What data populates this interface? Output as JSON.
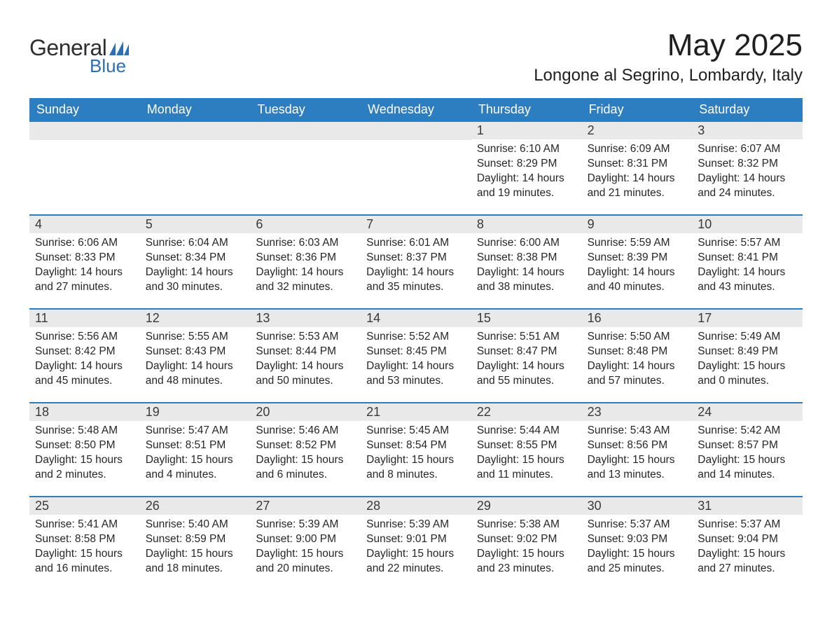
{
  "logo": {
    "general": "General",
    "blue": "Blue"
  },
  "title": "May 2025",
  "location": "Longone al Segrino, Lombardy, Italy",
  "colors": {
    "header_bg": "#2d7dc1",
    "header_text": "#ffffff",
    "daynum_bg": "#e9e9e9",
    "text": "#262626",
    "logo_blue": "#2d6fb5",
    "row_divider": "#2d7dc1",
    "background": "#ffffff"
  },
  "weekdays": [
    "Sunday",
    "Monday",
    "Tuesday",
    "Wednesday",
    "Thursday",
    "Friday",
    "Saturday"
  ],
  "weeks": [
    [
      null,
      null,
      null,
      null,
      {
        "n": "1",
        "sunrise": "Sunrise: 6:10 AM",
        "sunset": "Sunset: 8:29 PM",
        "d1": "Daylight: 14 hours",
        "d2": "and 19 minutes."
      },
      {
        "n": "2",
        "sunrise": "Sunrise: 6:09 AM",
        "sunset": "Sunset: 8:31 PM",
        "d1": "Daylight: 14 hours",
        "d2": "and 21 minutes."
      },
      {
        "n": "3",
        "sunrise": "Sunrise: 6:07 AM",
        "sunset": "Sunset: 8:32 PM",
        "d1": "Daylight: 14 hours",
        "d2": "and 24 minutes."
      }
    ],
    [
      {
        "n": "4",
        "sunrise": "Sunrise: 6:06 AM",
        "sunset": "Sunset: 8:33 PM",
        "d1": "Daylight: 14 hours",
        "d2": "and 27 minutes."
      },
      {
        "n": "5",
        "sunrise": "Sunrise: 6:04 AM",
        "sunset": "Sunset: 8:34 PM",
        "d1": "Daylight: 14 hours",
        "d2": "and 30 minutes."
      },
      {
        "n": "6",
        "sunrise": "Sunrise: 6:03 AM",
        "sunset": "Sunset: 8:36 PM",
        "d1": "Daylight: 14 hours",
        "d2": "and 32 minutes."
      },
      {
        "n": "7",
        "sunrise": "Sunrise: 6:01 AM",
        "sunset": "Sunset: 8:37 PM",
        "d1": "Daylight: 14 hours",
        "d2": "and 35 minutes."
      },
      {
        "n": "8",
        "sunrise": "Sunrise: 6:00 AM",
        "sunset": "Sunset: 8:38 PM",
        "d1": "Daylight: 14 hours",
        "d2": "and 38 minutes."
      },
      {
        "n": "9",
        "sunrise": "Sunrise: 5:59 AM",
        "sunset": "Sunset: 8:39 PM",
        "d1": "Daylight: 14 hours",
        "d2": "and 40 minutes."
      },
      {
        "n": "10",
        "sunrise": "Sunrise: 5:57 AM",
        "sunset": "Sunset: 8:41 PM",
        "d1": "Daylight: 14 hours",
        "d2": "and 43 minutes."
      }
    ],
    [
      {
        "n": "11",
        "sunrise": "Sunrise: 5:56 AM",
        "sunset": "Sunset: 8:42 PM",
        "d1": "Daylight: 14 hours",
        "d2": "and 45 minutes."
      },
      {
        "n": "12",
        "sunrise": "Sunrise: 5:55 AM",
        "sunset": "Sunset: 8:43 PM",
        "d1": "Daylight: 14 hours",
        "d2": "and 48 minutes."
      },
      {
        "n": "13",
        "sunrise": "Sunrise: 5:53 AM",
        "sunset": "Sunset: 8:44 PM",
        "d1": "Daylight: 14 hours",
        "d2": "and 50 minutes."
      },
      {
        "n": "14",
        "sunrise": "Sunrise: 5:52 AM",
        "sunset": "Sunset: 8:45 PM",
        "d1": "Daylight: 14 hours",
        "d2": "and 53 minutes."
      },
      {
        "n": "15",
        "sunrise": "Sunrise: 5:51 AM",
        "sunset": "Sunset: 8:47 PM",
        "d1": "Daylight: 14 hours",
        "d2": "and 55 minutes."
      },
      {
        "n": "16",
        "sunrise": "Sunrise: 5:50 AM",
        "sunset": "Sunset: 8:48 PM",
        "d1": "Daylight: 14 hours",
        "d2": "and 57 minutes."
      },
      {
        "n": "17",
        "sunrise": "Sunrise: 5:49 AM",
        "sunset": "Sunset: 8:49 PM",
        "d1": "Daylight: 15 hours",
        "d2": "and 0 minutes."
      }
    ],
    [
      {
        "n": "18",
        "sunrise": "Sunrise: 5:48 AM",
        "sunset": "Sunset: 8:50 PM",
        "d1": "Daylight: 15 hours",
        "d2": "and 2 minutes."
      },
      {
        "n": "19",
        "sunrise": "Sunrise: 5:47 AM",
        "sunset": "Sunset: 8:51 PM",
        "d1": "Daylight: 15 hours",
        "d2": "and 4 minutes."
      },
      {
        "n": "20",
        "sunrise": "Sunrise: 5:46 AM",
        "sunset": "Sunset: 8:52 PM",
        "d1": "Daylight: 15 hours",
        "d2": "and 6 minutes."
      },
      {
        "n": "21",
        "sunrise": "Sunrise: 5:45 AM",
        "sunset": "Sunset: 8:54 PM",
        "d1": "Daylight: 15 hours",
        "d2": "and 8 minutes."
      },
      {
        "n": "22",
        "sunrise": "Sunrise: 5:44 AM",
        "sunset": "Sunset: 8:55 PM",
        "d1": "Daylight: 15 hours",
        "d2": "and 11 minutes."
      },
      {
        "n": "23",
        "sunrise": "Sunrise: 5:43 AM",
        "sunset": "Sunset: 8:56 PM",
        "d1": "Daylight: 15 hours",
        "d2": "and 13 minutes."
      },
      {
        "n": "24",
        "sunrise": "Sunrise: 5:42 AM",
        "sunset": "Sunset: 8:57 PM",
        "d1": "Daylight: 15 hours",
        "d2": "and 14 minutes."
      }
    ],
    [
      {
        "n": "25",
        "sunrise": "Sunrise: 5:41 AM",
        "sunset": "Sunset: 8:58 PM",
        "d1": "Daylight: 15 hours",
        "d2": "and 16 minutes."
      },
      {
        "n": "26",
        "sunrise": "Sunrise: 5:40 AM",
        "sunset": "Sunset: 8:59 PM",
        "d1": "Daylight: 15 hours",
        "d2": "and 18 minutes."
      },
      {
        "n": "27",
        "sunrise": "Sunrise: 5:39 AM",
        "sunset": "Sunset: 9:00 PM",
        "d1": "Daylight: 15 hours",
        "d2": "and 20 minutes."
      },
      {
        "n": "28",
        "sunrise": "Sunrise: 5:39 AM",
        "sunset": "Sunset: 9:01 PM",
        "d1": "Daylight: 15 hours",
        "d2": "and 22 minutes."
      },
      {
        "n": "29",
        "sunrise": "Sunrise: 5:38 AM",
        "sunset": "Sunset: 9:02 PM",
        "d1": "Daylight: 15 hours",
        "d2": "and 23 minutes."
      },
      {
        "n": "30",
        "sunrise": "Sunrise: 5:37 AM",
        "sunset": "Sunset: 9:03 PM",
        "d1": "Daylight: 15 hours",
        "d2": "and 25 minutes."
      },
      {
        "n": "31",
        "sunrise": "Sunrise: 5:37 AM",
        "sunset": "Sunset: 9:04 PM",
        "d1": "Daylight: 15 hours",
        "d2": "and 27 minutes."
      }
    ]
  ]
}
